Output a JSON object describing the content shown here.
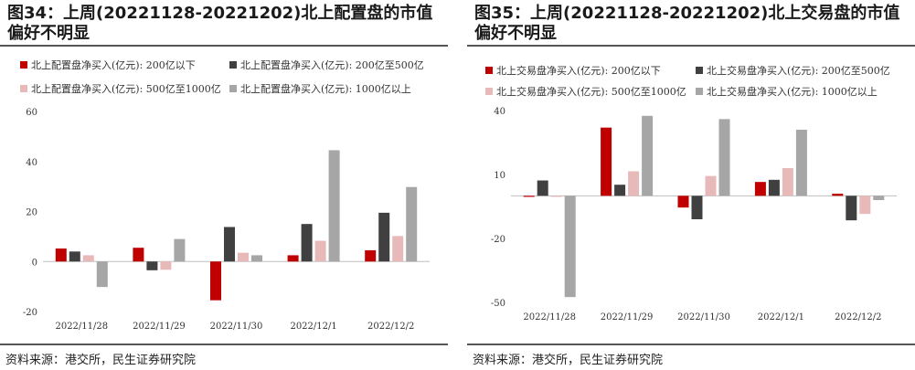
{
  "charts": [
    {
      "title": "图34：上周(20221128-20221202)北上配置盘的市值偏好不明显",
      "source": "资料来源：港交所，民生证券研究院",
      "chart_data": {
        "type": "bar",
        "title": "图34：上周(20221128-20221202)北上配置盘的市值偏好不明显",
        "categories": [
          "2022/11/28",
          "2022/11/29",
          "2022/11/30",
          "2022/12/1",
          "2022/12/2"
        ],
        "ylim": [
          -20,
          60
        ],
        "yticks": [
          -20,
          0,
          20,
          40,
          60
        ],
        "xlabel": "",
        "ylabel": "",
        "legend_position": "top",
        "series": [
          {
            "name": "北上配置盘净买入(亿元): 200亿以下",
            "color": "#c00000",
            "values": [
              5.2,
              5.5,
              -15.5,
              2.5,
              4.5
            ]
          },
          {
            "name": "北上配置盘净买入(亿元): 200亿至500亿",
            "color": "#404040",
            "values": [
              4.0,
              -3.5,
              13.8,
              15.0,
              19.5
            ]
          },
          {
            "name": "北上配置盘净买入(亿元): 500亿至1000亿",
            "color": "#e8b9b9",
            "values": [
              2.5,
              -3.3,
              3.5,
              8.3,
              10.2
            ]
          },
          {
            "name": "北上配置盘净买入(亿元): 1000亿以上",
            "color": "#a6a6a6",
            "values": [
              -10.2,
              9.0,
              2.5,
              44.5,
              29.8
            ]
          }
        ]
      }
    },
    {
      "title": "图35：上周(20221128-20221202)北上交易盘的市值偏好不明显",
      "source": "资料来源：港交所，民生证券研究院",
      "chart_data": {
        "type": "bar",
        "title": "图35：上周(20221128-20221202)北上交易盘的市值偏好不明显",
        "categories": [
          "2022/11/28",
          "2022/11/29",
          "2022/11/30",
          "2022/12/1",
          "2022/12/2"
        ],
        "ylim": [
          -50,
          40
        ],
        "yticks": [
          -50,
          -20,
          10,
          40
        ],
        "xlabel": "",
        "ylabel": "",
        "legend_position": "top",
        "series": [
          {
            "name": "北上交易盘净买入(亿元): 200亿以下",
            "color": "#c00000",
            "values": [
              -0.5,
              32.0,
              -5.5,
              6.5,
              1.0
            ]
          },
          {
            "name": "北上交易盘净买入(亿元): 200亿至500亿",
            "color": "#404040",
            "values": [
              7.2,
              5.2,
              -11.0,
              7.5,
              -11.5
            ]
          },
          {
            "name": "北上交易盘净买入(亿元): 500亿至1000亿",
            "color": "#e8b9b9",
            "values": [
              -0.5,
              11.5,
              9.3,
              13.0,
              -8.5
            ]
          },
          {
            "name": "北上交易盘净买入(亿元): 1000亿以上",
            "color": "#a6a6a6",
            "values": [
              -47.5,
              37.5,
              36.0,
              31.0,
              -2.0
            ]
          }
        ]
      }
    }
  ]
}
